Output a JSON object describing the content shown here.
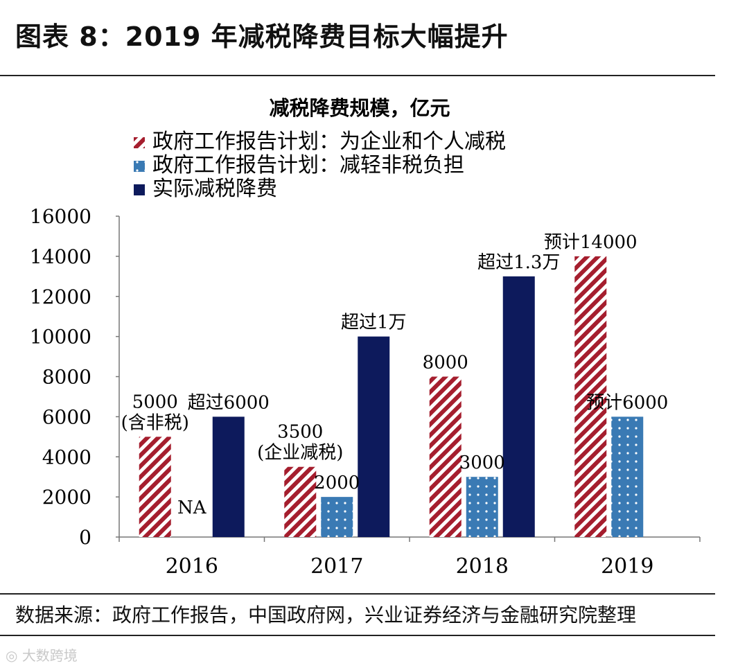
{
  "header": {
    "title": "图表 8：2019 年减税降费目标大幅提升"
  },
  "footer": {
    "source": "数据来源：政府工作报告，中国政府网，兴业证券经济与金融研究院整理"
  },
  "watermark": {
    "text": "大数跨境"
  },
  "chart_data": {
    "type": "bar",
    "title": "减税降费规模，亿元",
    "categories": [
      "2016",
      "2017",
      "2018",
      "2019"
    ],
    "ylim": [
      0,
      16000
    ],
    "yticks": [
      0,
      2000,
      4000,
      6000,
      8000,
      10000,
      12000,
      14000,
      16000
    ],
    "xlabel": "",
    "ylabel": "",
    "legend_position": "top-left",
    "series": [
      {
        "name": "政府工作报告计划：为企业和个人减税",
        "pattern": "diagonal-stripe",
        "color": "#a51e2e",
        "values": [
          5000,
          3500,
          8000,
          14000
        ],
        "labels": [
          [
            "5000",
            "(含非税)"
          ],
          [
            "3500",
            "(企业减税)"
          ],
          [
            "8000"
          ],
          [
            "预计14000"
          ]
        ]
      },
      {
        "name": "政府工作报告计划：减轻非税负担",
        "pattern": "dots",
        "color": "#3a7ab4",
        "values": [
          null,
          2000,
          3000,
          6000
        ],
        "labels": [
          [
            "NA"
          ],
          [
            "2000"
          ],
          [
            "3000"
          ],
          [
            "预计6000"
          ]
        ]
      },
      {
        "name": "实际减税降费",
        "pattern": "solid",
        "color": "#0d1a5c",
        "values": [
          6000,
          10000,
          13000,
          null
        ],
        "labels": [
          [
            "超过6000"
          ],
          [
            "超过1万"
          ],
          [
            "超过1.3万"
          ],
          []
        ]
      }
    ]
  }
}
